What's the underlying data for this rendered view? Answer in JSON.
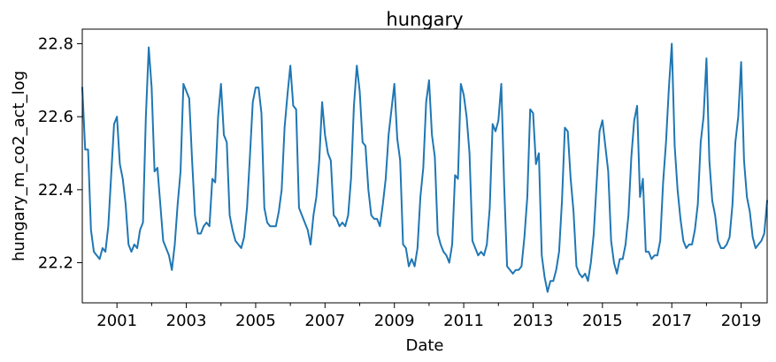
{
  "chart_data": {
    "type": "line",
    "title": "hungary",
    "xlabel": "Date",
    "ylabel": "hungary_m_co2_act_log",
    "xlim": [
      "2000-01",
      "2019-10"
    ],
    "ylim": [
      22.09,
      22.84
    ],
    "grid": false,
    "legend": "none",
    "x_ticks": [
      "2001",
      "2003",
      "2005",
      "2007",
      "2009",
      "2011",
      "2013",
      "2015",
      "2017",
      "2019"
    ],
    "y_ticks": [
      "22.2",
      "22.4",
      "22.6",
      "22.8"
    ],
    "series_color": "#1f77b4",
    "series": [
      {
        "x": [
          "2000-01",
          "2000-02",
          "2000-03",
          "2000-04",
          "2000-05",
          "2000-06",
          "2000-07",
          "2000-08",
          "2000-09",
          "2000-10",
          "2000-11",
          "2000-12",
          "2001-01",
          "2001-02",
          "2001-03",
          "2001-04",
          "2001-05",
          "2001-06",
          "2001-07",
          "2001-08",
          "2001-09",
          "2001-10",
          "2001-11",
          "2001-12",
          "2002-01",
          "2002-02",
          "2002-03",
          "2002-04",
          "2002-05",
          "2002-06",
          "2002-07",
          "2002-08",
          "2002-09",
          "2002-10",
          "2002-11",
          "2002-12",
          "2003-01",
          "2003-02",
          "2003-03",
          "2003-04",
          "2003-05",
          "2003-06",
          "2003-07",
          "2003-08",
          "2003-09",
          "2003-10",
          "2003-11",
          "2003-12",
          "2004-01",
          "2004-02",
          "2004-03",
          "2004-04",
          "2004-05",
          "2004-06",
          "2004-07",
          "2004-08",
          "2004-09",
          "2004-10",
          "2004-11",
          "2004-12",
          "2005-01",
          "2005-02",
          "2005-03",
          "2005-04",
          "2005-05",
          "2005-06",
          "2005-07",
          "2005-08",
          "2005-09",
          "2005-10",
          "2005-11",
          "2005-12",
          "2006-01",
          "2006-02",
          "2006-03",
          "2006-04",
          "2006-05",
          "2006-06",
          "2006-07",
          "2006-08",
          "2006-09",
          "2006-10",
          "2006-11",
          "2006-12",
          "2007-01",
          "2007-02",
          "2007-03",
          "2007-04",
          "2007-05",
          "2007-06",
          "2007-07",
          "2007-08",
          "2007-09",
          "2007-10",
          "2007-11",
          "2007-12",
          "2008-01",
          "2008-02",
          "2008-03",
          "2008-04",
          "2008-05",
          "2008-06",
          "2008-07",
          "2008-08",
          "2008-09",
          "2008-10",
          "2008-11",
          "2008-12",
          "2009-01",
          "2009-02",
          "2009-03",
          "2009-04",
          "2009-05",
          "2009-06",
          "2009-07",
          "2009-08",
          "2009-09",
          "2009-10",
          "2009-11",
          "2009-12",
          "2010-01",
          "2010-02",
          "2010-03",
          "2010-04",
          "2010-05",
          "2010-06",
          "2010-07",
          "2010-08",
          "2010-09",
          "2010-10",
          "2010-11",
          "2010-12",
          "2011-01",
          "2011-02",
          "2011-03",
          "2011-04",
          "2011-05",
          "2011-06",
          "2011-07",
          "2011-08",
          "2011-09",
          "2011-10",
          "2011-11",
          "2011-12",
          "2012-01",
          "2012-02",
          "2012-03",
          "2012-04",
          "2012-05",
          "2012-06",
          "2012-07",
          "2012-08",
          "2012-09",
          "2012-10",
          "2012-11",
          "2012-12",
          "2013-01",
          "2013-02",
          "2013-03",
          "2013-04",
          "2013-05",
          "2013-06",
          "2013-07",
          "2013-08",
          "2013-09",
          "2013-10",
          "2013-11",
          "2013-12",
          "2014-01",
          "2014-02",
          "2014-03",
          "2014-04",
          "2014-05",
          "2014-06",
          "2014-07",
          "2014-08",
          "2014-09",
          "2014-10",
          "2014-11",
          "2014-12",
          "2015-01",
          "2015-02",
          "2015-03",
          "2015-04",
          "2015-05",
          "2015-06",
          "2015-07",
          "2015-08",
          "2015-09",
          "2015-10",
          "2015-11",
          "2015-12",
          "2016-01",
          "2016-02",
          "2016-03",
          "2016-04",
          "2016-05",
          "2016-06",
          "2016-07",
          "2016-08",
          "2016-09",
          "2016-10",
          "2016-11",
          "2016-12",
          "2017-01",
          "2017-02",
          "2017-03",
          "2017-04",
          "2017-05",
          "2017-06",
          "2017-07",
          "2017-08",
          "2017-09",
          "2017-10",
          "2017-11",
          "2017-12",
          "2018-01",
          "2018-02",
          "2018-03",
          "2018-04",
          "2018-05",
          "2018-06",
          "2018-07",
          "2018-08",
          "2018-09",
          "2018-10",
          "2018-11",
          "2018-12",
          "2019-01",
          "2019-02",
          "2019-03",
          "2019-04",
          "2019-05",
          "2019-06",
          "2019-07",
          "2019-08",
          "2019-09",
          "2019-10"
        ],
        "values": [
          22.68,
          22.51,
          22.51,
          22.29,
          22.23,
          22.22,
          22.21,
          22.24,
          22.23,
          22.3,
          22.44,
          22.58,
          22.6,
          22.47,
          22.43,
          22.36,
          22.25,
          22.23,
          22.25,
          22.24,
          22.29,
          22.31,
          22.6,
          22.79,
          22.68,
          22.45,
          22.46,
          22.36,
          22.26,
          22.24,
          22.22,
          22.18,
          22.25,
          22.36,
          22.45,
          22.69,
          22.67,
          22.65,
          22.48,
          22.33,
          22.28,
          22.28,
          22.3,
          22.31,
          22.3,
          22.43,
          22.42,
          22.6,
          22.69,
          22.55,
          22.53,
          22.33,
          22.29,
          22.26,
          22.25,
          22.24,
          22.27,
          22.35,
          22.49,
          22.64,
          22.68,
          22.68,
          22.61,
          22.35,
          22.31,
          22.3,
          22.3,
          22.3,
          22.34,
          22.4,
          22.57,
          22.66,
          22.74,
          22.63,
          22.62,
          22.35,
          22.33,
          22.31,
          22.29,
          22.25,
          22.33,
          22.38,
          22.48,
          22.64,
          22.55,
          22.5,
          22.48,
          22.33,
          22.32,
          22.3,
          22.31,
          22.3,
          22.33,
          22.43,
          22.63,
          22.74,
          22.67,
          22.53,
          22.52,
          22.4,
          22.33,
          22.32,
          22.32,
          22.3,
          22.36,
          22.43,
          22.55,
          22.62,
          22.69,
          22.54,
          22.48,
          22.25,
          22.24,
          22.19,
          22.21,
          22.19,
          22.24,
          22.38,
          22.46,
          22.64,
          22.7,
          22.55,
          22.49,
          22.28,
          22.25,
          22.23,
          22.22,
          22.2,
          22.25,
          22.44,
          22.43,
          22.69,
          22.66,
          22.6,
          22.5,
          22.26,
          22.24,
          22.22,
          22.23,
          22.22,
          22.25,
          22.35,
          22.58,
          22.56,
          22.59,
          22.69,
          22.41,
          22.19,
          22.18,
          22.17,
          22.18,
          22.18,
          22.19,
          22.27,
          22.38,
          22.62,
          22.61,
          22.47,
          22.5,
          22.22,
          22.16,
          22.12,
          22.15,
          22.15,
          22.18,
          22.23,
          22.37,
          22.57,
          22.56,
          22.43,
          22.34,
          22.19,
          22.17,
          22.16,
          22.17,
          22.15,
          22.2,
          22.28,
          22.42,
          22.56,
          22.59,
          22.52,
          22.45,
          22.26,
          22.2,
          22.17,
          22.21,
          22.21,
          22.25,
          22.33,
          22.49,
          22.59,
          22.63,
          22.38,
          22.43,
          22.23,
          22.23,
          22.21,
          22.22,
          22.22,
          22.26,
          22.42,
          22.53,
          22.68,
          22.8,
          22.52,
          22.4,
          22.32,
          22.26,
          22.24,
          22.25,
          22.25,
          22.29,
          22.36,
          22.53,
          22.6,
          22.76,
          22.48,
          22.37,
          22.33,
          22.26,
          22.24,
          22.24,
          22.25,
          22.27,
          22.36,
          22.53,
          22.6,
          22.75,
          22.48,
          22.38,
          22.34,
          22.27,
          22.24,
          22.25,
          22.26,
          22.28,
          22.37
        ]
      }
    ]
  }
}
